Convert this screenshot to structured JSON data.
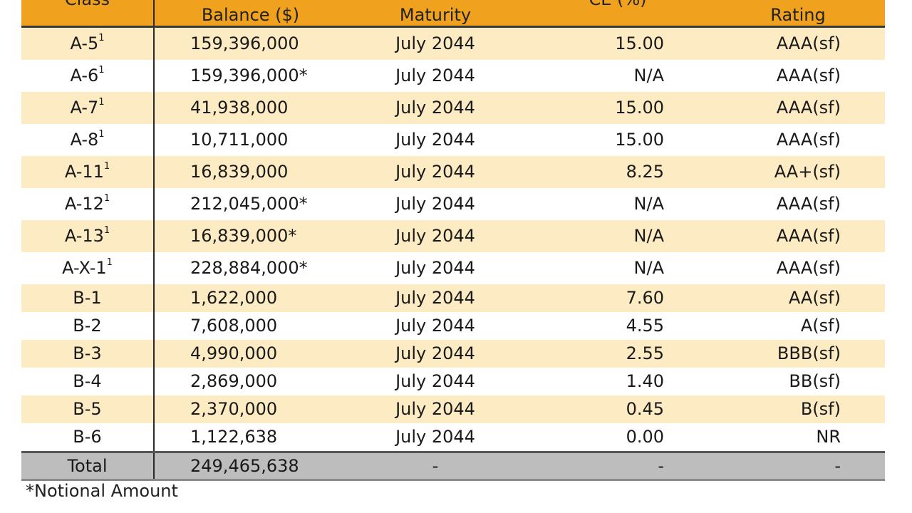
{
  "header": {
    "class_label": "Class",
    "balance_top": "",
    "balance_label": "Balance ($)",
    "maturity_top": "",
    "maturity_label": "Maturity",
    "ce_label": "CE (%)",
    "rating_top": "",
    "rating_label": "Rating"
  },
  "rows": [
    {
      "cls": "A-5",
      "sup": "1",
      "bal": "159,396,000",
      "mat": "July 2044",
      "ce": "15.00",
      "rat": "AAA(sf)"
    },
    {
      "cls": "A-6",
      "sup": "1",
      "bal": "159,396,000*",
      "mat": "July 2044",
      "ce": "N/A",
      "rat": "AAA(sf)"
    },
    {
      "cls": "A-7",
      "sup": "1",
      "bal": "41,938,000",
      "mat": "July 2044",
      "ce": "15.00",
      "rat": "AAA(sf)"
    },
    {
      "cls": "A-8",
      "sup": "1",
      "bal": "10,711,000",
      "mat": "July 2044",
      "ce": "15.00",
      "rat": "AAA(sf)"
    },
    {
      "cls": "A-11",
      "sup": "1",
      "bal": "16,839,000",
      "mat": "July 2044",
      "ce": "8.25",
      "rat": "AA+(sf)"
    },
    {
      "cls": "A-12",
      "sup": "1",
      "bal": "212,045,000*",
      "mat": "July 2044",
      "ce": "N/A",
      "rat": "AAA(sf)"
    },
    {
      "cls": "A-13",
      "sup": "1",
      "bal": "16,839,000*",
      "mat": "July 2044",
      "ce": "N/A",
      "rat": "AAA(sf)"
    },
    {
      "cls": "A-X-1",
      "sup": "1",
      "bal": "228,884,000*",
      "mat": "July 2044",
      "ce": "N/A",
      "rat": "AAA(sf)"
    },
    {
      "cls": "B-1",
      "sup": "",
      "bal": "1,622,000",
      "mat": "July 2044",
      "ce": "7.60",
      "rat": "AA(sf)"
    },
    {
      "cls": "B-2",
      "sup": "",
      "bal": "7,608,000",
      "mat": "July 2044",
      "ce": "4.55",
      "rat": "A(sf)"
    },
    {
      "cls": "B-3",
      "sup": "",
      "bal": "4,990,000",
      "mat": "July 2044",
      "ce": "2.55",
      "rat": "BBB(sf)"
    },
    {
      "cls": "B-4",
      "sup": "",
      "bal": "2,869,000",
      "mat": "July 2044",
      "ce": "1.40",
      "rat": "BB(sf)"
    },
    {
      "cls": "B-5",
      "sup": "",
      "bal": "2,370,000",
      "mat": "July 2044",
      "ce": "0.45",
      "rat": "B(sf)"
    },
    {
      "cls": "B-6",
      "sup": "",
      "bal": "1,122,638",
      "mat": "July 2044",
      "ce": "0.00",
      "rat": "NR"
    }
  ],
  "total": {
    "cls": "Total",
    "bal": "249,465,638",
    "mat": "-",
    "ce": "-",
    "rat": "-"
  },
  "footnote": "*Notional Amount",
  "colors": {
    "header": "#f0a11e",
    "band": "#fdecc3",
    "total": "#bdbdbd"
  }
}
